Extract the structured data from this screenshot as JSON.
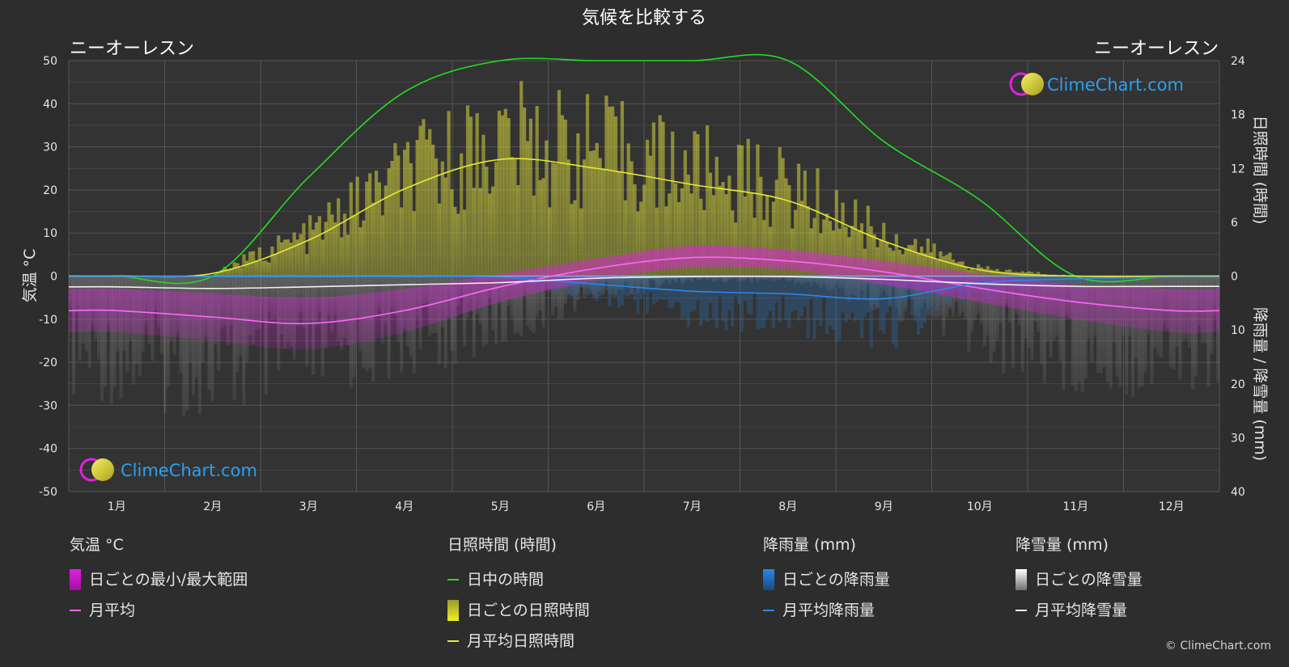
{
  "title": "気候を比較する",
  "location_left": "ニーオーレスン",
  "location_right": "ニーオーレスン",
  "watermark": "ClimeChart.com",
  "copyright": "© ClimeChart.com",
  "legend": {
    "temperature": {
      "header": "気温 °C",
      "range_label": "日ごとの最小/最大範囲",
      "avg_label": "月平均",
      "range_color": "#e020e0",
      "avg_color": "#ff66ff"
    },
    "sunshine": {
      "header": "日照時間 (時間)",
      "daylight_label": "日中の時間",
      "daily_label": "日ごとの日照時間",
      "avg_label": "月平均日照時間",
      "daylight_color": "#22dd22",
      "daily_color": "#d8d83a",
      "avg_color": "#e8e832"
    },
    "rain": {
      "header": "降雨量 (mm)",
      "daily_label": "日ごとの降雨量",
      "avg_label": "月平均降雨量",
      "daily_color": "#2a88d8",
      "avg_color": "#2a88e8"
    },
    "snow": {
      "header": "降雪量 (mm)",
      "daily_label": "日ごとの降雪量",
      "avg_label": "月平均降雪量",
      "daily_color": "#d8d8d8",
      "avg_color": "#f0f0f0"
    }
  },
  "chart_data": {
    "type": "line",
    "x": [
      "1月",
      "2月",
      "3月",
      "4月",
      "5月",
      "6月",
      "7月",
      "8月",
      "9月",
      "10月",
      "11月",
      "12月"
    ],
    "y_left": {
      "label": "気温 °C",
      "ticks": [
        50,
        40,
        30,
        20,
        10,
        0,
        -10,
        -20,
        -30,
        -40,
        -50
      ],
      "lim": [
        -50,
        50
      ]
    },
    "y_right_top": {
      "label": "日照時間 (時間)",
      "ticks": [
        24,
        18,
        12,
        6,
        0
      ],
      "lim": [
        0,
        24
      ]
    },
    "y_right_bottom": {
      "label": "降雨量 / 降雪量 (mm)",
      "ticks": [
        0,
        10,
        20,
        30,
        40
      ],
      "lim": [
        0,
        40
      ]
    },
    "series": [
      {
        "name": "月平均",
        "axis": "temperature",
        "values": [
          -8,
          -9.5,
          -11,
          -8,
          -2.5,
          1.8,
          4.3,
          3.5,
          1,
          -2.8,
          -6,
          -8
        ]
      },
      {
        "name": "日中の時間",
        "axis": "sunshine",
        "values": [
          0,
          0,
          11,
          20.5,
          24,
          24,
          24,
          24,
          15,
          8.5,
          0,
          0
        ]
      },
      {
        "name": "月平均日照時間",
        "axis": "sunshine",
        "values": [
          0,
          0.3,
          4,
          9.7,
          13,
          12,
          10.2,
          8.4,
          3.9,
          0.7,
          0,
          0
        ]
      },
      {
        "name": "月平均降雨量",
        "axis": "precipitation",
        "values": [
          0.1,
          0.1,
          0.1,
          0.1,
          0.2,
          1.5,
          2.8,
          3.3,
          4.2,
          1.3,
          0.5,
          0.2
        ]
      },
      {
        "name": "月平均降雪量",
        "axis": "precipitation",
        "values": [
          2.0,
          2.3,
          2.0,
          1.6,
          1.2,
          0.4,
          0.1,
          0.1,
          0.6,
          1.4,
          1.9,
          1.9
        ]
      }
    ],
    "daily_temp_range": {
      "avg_min": [
        -13,
        -15,
        -17,
        -13,
        -6,
        -1,
        2,
        1.5,
        -2,
        -6,
        -10,
        -13
      ],
      "avg_max": [
        -3,
        -4,
        -5,
        -3,
        0.5,
        4,
        7,
        6,
        3.5,
        0.5,
        -2,
        -3
      ]
    },
    "grid": true
  }
}
